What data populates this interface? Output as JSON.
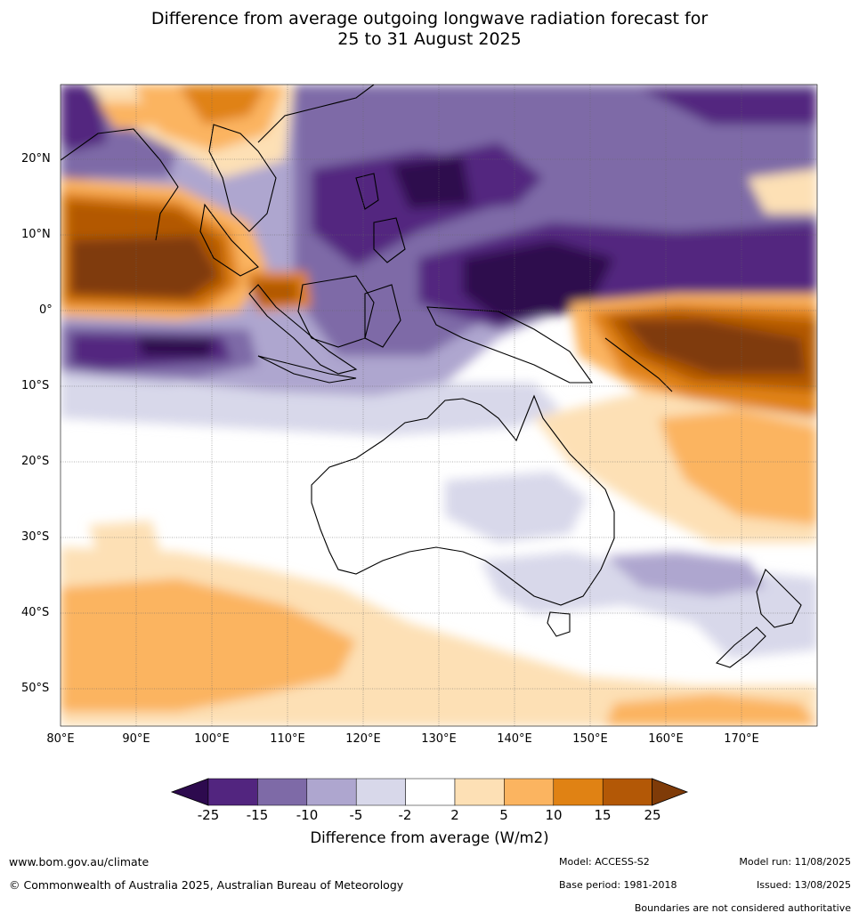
{
  "title_line1": "Difference from average outgoing longwave radiation forecast for",
  "title_line2": "25 to 31 August 2025",
  "lat_labels": [
    "20°N",
    "10°N",
    "0°",
    "10°S",
    "20°S",
    "30°S",
    "40°S",
    "50°S"
  ],
  "lon_labels": [
    "80°E",
    "90°E",
    "100°E",
    "110°E",
    "120°E",
    "130°E",
    "140°E",
    "150°E",
    "160°E",
    "170°E"
  ],
  "colorbar": {
    "ticks": [
      "-25",
      "-15",
      "-10",
      "-5",
      "-2",
      "2",
      "5",
      "10",
      "15",
      "25"
    ],
    "colors": [
      "#2d0a4e",
      "#52257f",
      "#7e6aa7",
      "#aea6cf",
      "#d8d8ea",
      "#ffffff",
      "#fde0b5",
      "#fbb460",
      "#e08214",
      "#b35806",
      "#7f3b08"
    ],
    "title": "Difference from average (W/m2)"
  },
  "footer": {
    "website": "www.bom.gov.au/climate",
    "copyright": "© Commonwealth of Australia 2025, Australian Bureau of Meteorology",
    "model": "Model: ACCESS-S2",
    "base_period": "Base period: 1981-2018",
    "model_run": "Model run: 11/08/2025",
    "issued": "Issued: 13/08/2025",
    "disclaimer": "Boundaries are not considered authoritative"
  }
}
